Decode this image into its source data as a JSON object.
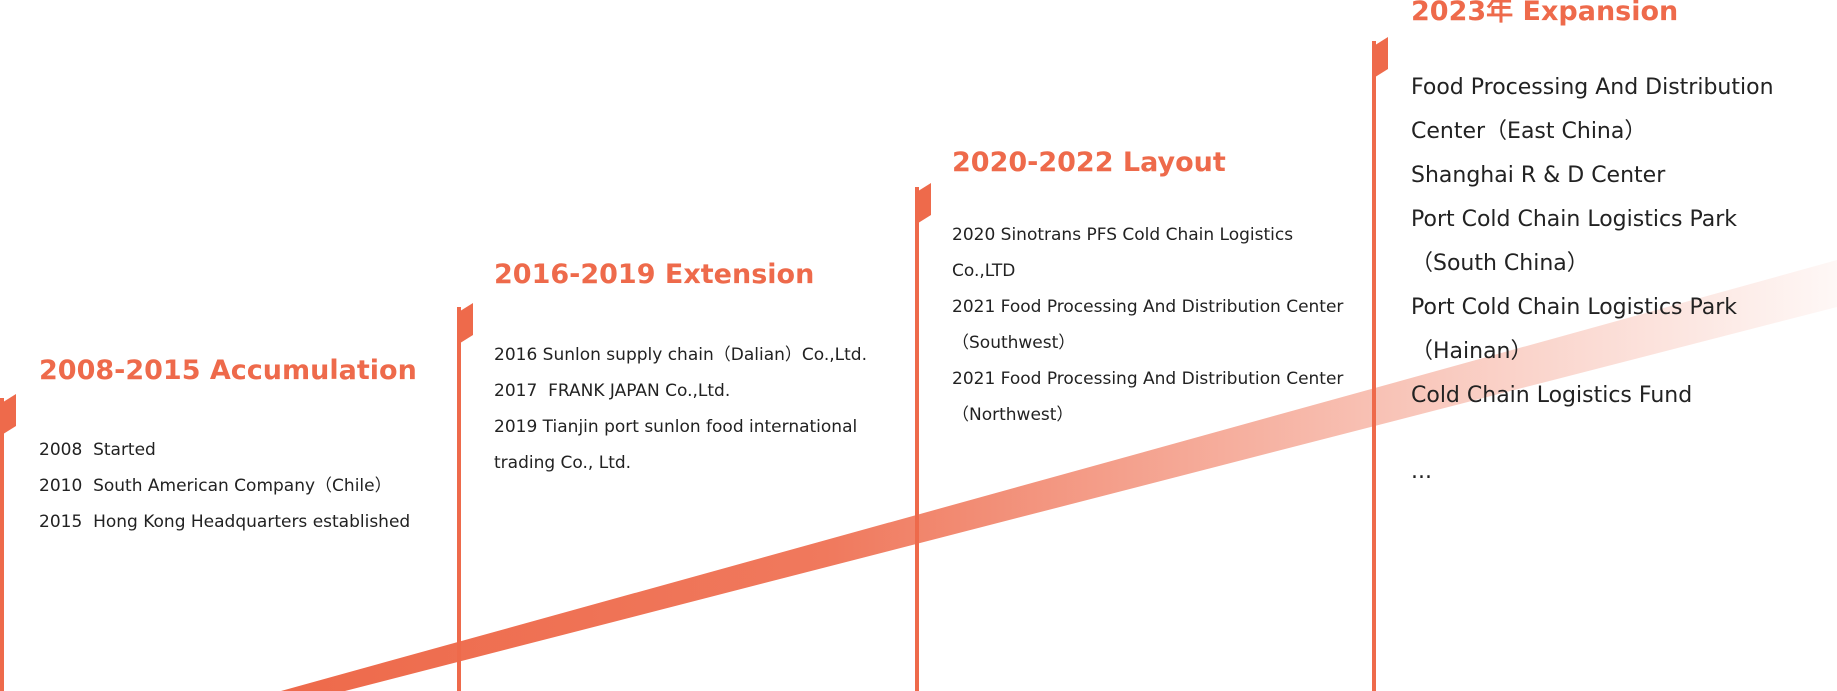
{
  "sections": [
    {
      "title": "2008-2015 Accumulation",
      "items": [
        "2008  Started",
        "2010  South American Company（Chile）",
        "2015  Hong Kong Headquarters established"
      ]
    },
    {
      "title": "2016-2019 Extension",
      "items": [
        "2016 Sunlon supply chain（Dalian）Co.,Ltd.",
        "2017  FRANK JAPAN Co.,Ltd.",
        "2019 Tianjin port sunlon food international trading Co., Ltd."
      ]
    },
    {
      "title": "2020-2022 Layout",
      "items": [
        "2020 Sinotrans PFS Cold Chain Logistics Co.,LTD",
        "2021 Food Processing And Distribution Center（Southwest）",
        "2021 Food Processing And Distribution Center（Northwest）"
      ]
    },
    {
      "title": "2023年 Expansion",
      "items": [
        "Food Processing And Distribution Center（East China）",
        "Shanghai R & D Center",
        "Port Cold Chain Logistics Park（South China）",
        "Port Cold Chain Logistics Park（Hainan）",
        "Cold Chain Logistics Fund",
        "..."
      ]
    }
  ]
}
